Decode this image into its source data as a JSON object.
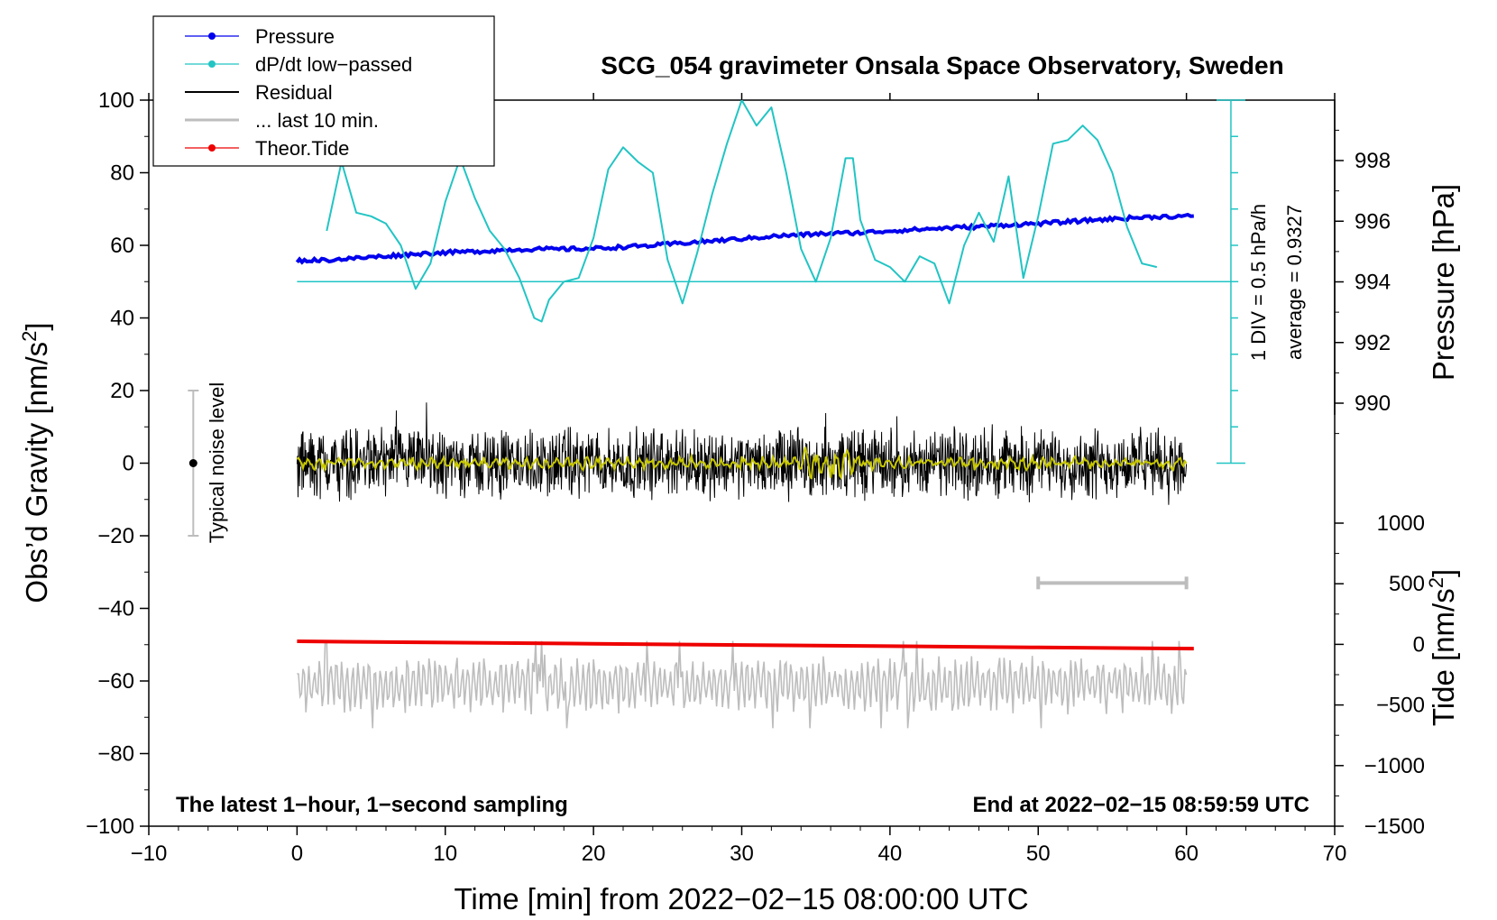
{
  "chart_data": {
    "type": "line",
    "title": "SCG_054 gravimeter Onsala Space Observatory, Sweden",
    "xlabel": "Time [min] from 2022−02−15 08:00:00 UTC",
    "ylabel_left_main": "Obs’d Gravity [nm/s",
    "ylabel_left_sup": "2",
    "ylabel_left_end": "]",
    "ylabel_right_pressure": "Pressure [hPa]",
    "ylabel_right_tide_main": "Tide [nm/s",
    "ylabel_right_tide_sup": "2",
    "ylabel_right_tide_end": "]",
    "xlim": [
      -10,
      70
    ],
    "ylim": [
      -100,
      100
    ],
    "pressure_lim": [
      988,
      1000
    ],
    "tide_lim": [
      -1500,
      1000
    ],
    "x_ticks": [
      "−10",
      "0",
      "10",
      "20",
      "30",
      "40",
      "50",
      "60",
      "70"
    ],
    "x_tick_values": [
      -10,
      0,
      10,
      20,
      30,
      40,
      50,
      60,
      70
    ],
    "y_ticks": [
      "−100",
      "−80",
      "−60",
      "−40",
      "−20",
      "0",
      "20",
      "40",
      "60",
      "80",
      "100"
    ],
    "y_tick_values": [
      -100,
      -80,
      -60,
      -40,
      -20,
      0,
      20,
      40,
      60,
      80,
      100
    ],
    "pressure_ticks": [
      "990",
      "992",
      "994",
      "996",
      "998"
    ],
    "pressure_tick_values": [
      990,
      992,
      994,
      996,
      998
    ],
    "tide_ticks": [
      "−1500",
      "−1000",
      "−500",
      "0",
      "500",
      "1000"
    ],
    "tide_tick_values": [
      -1500,
      -1000,
      -500,
      0,
      500,
      1000
    ],
    "legend": [
      {
        "label": "Pressure",
        "color": "#0000ee",
        "marker": true
      },
      {
        "label": "dP/dt low−passed",
        "color": "#22c4c4",
        "marker": true
      },
      {
        "label": "Residual",
        "color": "#000000",
        "marker": false
      },
      {
        "label": "... last 10 min.",
        "color": "#bdbdbd",
        "marker": false
      },
      {
        "label": "Theor.Tide",
        "color": "#ee0000",
        "marker": true
      }
    ],
    "annotations": {
      "left_note": "The latest 1−hour, 1−second sampling",
      "right_note": "End at 2022−02−15 08:59:59 UTC",
      "noise_label": "Typical noise level",
      "div_label": "1 DIV = 0.5 hPa/h",
      "avg_label": "average = 0.9327"
    },
    "noise_bar": {
      "x": -7,
      "y_center": 0,
      "y_range": [
        -20,
        20
      ]
    },
    "ten_min_bar": {
      "x_range": [
        50,
        60
      ],
      "y": -33
    },
    "dpdt_scale": {
      "x": 63,
      "y_range": [
        0,
        100
      ],
      "divisions": 10,
      "baseline_y": 50
    },
    "series": [
      {
        "name": "Pressure",
        "axis": "pressure",
        "color": "#0000ee",
        "x": [
          0,
          2,
          4,
          6,
          8,
          10,
          12,
          14,
          16,
          18,
          20,
          22,
          24,
          26,
          28,
          30,
          32,
          34,
          36,
          38,
          40,
          42,
          44,
          46,
          48,
          50,
          52,
          54,
          56,
          58,
          60.5
        ],
        "values": [
          994.7,
          994.72,
          994.78,
          994.85,
          994.92,
          994.97,
          995.0,
          995.05,
          995.08,
          995.08,
          995.1,
          995.15,
          995.2,
          995.28,
          995.35,
          995.42,
          995.5,
          995.55,
          995.6,
          995.62,
          995.68,
          995.73,
          995.78,
          995.82,
          995.88,
          995.92,
          995.98,
          996.05,
          996.1,
          996.15,
          996.17
        ]
      },
      {
        "name": "dP/dt low-passed",
        "axis": "gravity",
        "color": "#22c4c4",
        "x": [
          2,
          3,
          4,
          5,
          6,
          7,
          8,
          9,
          10,
          11,
          12,
          13,
          14,
          15,
          16,
          16.5,
          17,
          18,
          19,
          20,
          21,
          22,
          23,
          24,
          25,
          26,
          27,
          28,
          29,
          30,
          31,
          32,
          33,
          34,
          35,
          36,
          37,
          37.5,
          38,
          39,
          40,
          41,
          42,
          43,
          44,
          45,
          46,
          47,
          48,
          49,
          50,
          51,
          52,
          53,
          54,
          55,
          56,
          57,
          58
        ],
        "values": [
          64,
          83,
          69,
          68,
          66,
          60,
          48,
          55,
          72,
          84,
          73,
          64,
          59,
          51,
          40,
          39,
          45,
          50,
          51,
          62,
          81,
          87,
          83,
          80,
          56,
          44,
          58,
          74,
          88,
          100,
          93,
          98,
          80,
          59,
          50,
          62,
          84,
          84,
          67,
          56,
          54,
          50,
          57,
          55,
          44,
          60,
          69,
          61,
          79,
          51,
          68,
          88,
          89,
          93,
          89,
          80,
          65,
          55,
          54
        ]
      },
      {
        "name": "Residual",
        "axis": "gravity",
        "color": "#000000",
        "x_range": [
          0,
          60
        ],
        "center": 0,
        "amplitude_range": [
          -16,
          21
        ]
      },
      {
        "name": "Residual (low-passed)",
        "axis": "gravity",
        "color": "#c8c800",
        "x_range": [
          0,
          60
        ],
        "center": 0,
        "amplitude_range": [
          -5,
          5
        ]
      },
      {
        "name": "... last 10 min.",
        "axis": "gravity",
        "color": "#bdbdbd",
        "x_range": [
          0,
          60
        ],
        "center": -61,
        "amplitude_range": [
          -75,
          -48
        ]
      },
      {
        "name": "Theor.Tide",
        "axis": "tide",
        "color": "#ee0000",
        "x": [
          0,
          10,
          20,
          30,
          40,
          50,
          60.5
        ],
        "values": [
          25,
          15,
          5,
          -5,
          -15,
          -25,
          -35
        ]
      }
    ]
  }
}
